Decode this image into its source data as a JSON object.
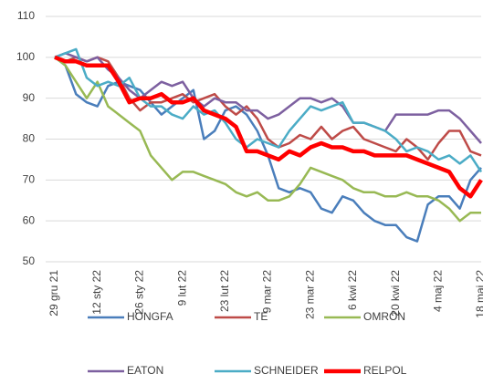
{
  "chart_data": {
    "type": "line",
    "categories": [
      "29 gru 21",
      null,
      null,
      null,
      "12 sty 22",
      null,
      null,
      null,
      "26 sty 22",
      null,
      null,
      null,
      "9 lut 22",
      null,
      null,
      null,
      "23 lut 22",
      null,
      null,
      null,
      "9 mar 22",
      null,
      null,
      null,
      "23 mar 22",
      null,
      null,
      null,
      "6 kwi 22",
      null,
      null,
      null,
      "20 kwi 22",
      null,
      null,
      null,
      "4 maj 22",
      null,
      null,
      null,
      "18 maj 22"
    ],
    "ylim": [
      50,
      110
    ],
    "yticks": [
      50,
      60,
      70,
      80,
      90,
      100,
      110
    ],
    "grid": true,
    "legend": "bottom",
    "series": [
      {
        "name": "HONGFA",
        "color": "#4a7ebb",
        "values": [
          100,
          98,
          91,
          89,
          88,
          93,
          94,
          93,
          92,
          89,
          86,
          88,
          90,
          92,
          80,
          82,
          87,
          88,
          86,
          82,
          76,
          68,
          67,
          68,
          67,
          63,
          62,
          66,
          65,
          62,
          60,
          59,
          59,
          56,
          55,
          64,
          66,
          66,
          63,
          70,
          73
        ]
      },
      {
        "name": "TE",
        "color": "#be4b48",
        "values": [
          100,
          99,
          100,
          99,
          100,
          99,
          95,
          90,
          87,
          89,
          89,
          90,
          91,
          89,
          90,
          91,
          88,
          86,
          88,
          85,
          80,
          78,
          79,
          81,
          80,
          83,
          80,
          82,
          83,
          80,
          79,
          78,
          77,
          80,
          78,
          75,
          79,
          82,
          82,
          77,
          76
        ]
      },
      {
        "name": "OMRON",
        "color": "#98b954",
        "values": [
          100,
          98,
          94,
          90,
          94,
          88,
          86,
          84,
          82,
          76,
          73,
          70,
          72,
          72,
          71,
          70,
          69,
          67,
          66,
          67,
          65,
          65,
          66,
          69,
          73,
          72,
          71,
          70,
          68,
          67,
          67,
          66,
          66,
          67,
          66,
          66,
          65,
          63,
          60,
          62,
          62
        ]
      },
      {
        "name": "EATON",
        "color": "#7d60a0",
        "values": [
          100,
          101,
          100,
          99,
          100,
          97,
          95,
          92,
          90,
          92,
          94,
          93,
          94,
          90,
          88,
          90,
          89,
          89,
          87,
          87,
          85,
          86,
          88,
          90,
          90,
          89,
          90,
          88,
          84,
          84,
          83,
          82,
          86,
          86,
          86,
          86,
          87,
          87,
          85,
          82,
          79
        ]
      },
      {
        "name": "SCHNEIDER",
        "color": "#4bacc6",
        "values": [
          100,
          101,
          102,
          95,
          93,
          94,
          93,
          95,
          90,
          88,
          88,
          86,
          85,
          88,
          86,
          87,
          84,
          80,
          78,
          80,
          79,
          78,
          82,
          85,
          88,
          87,
          88,
          89,
          84,
          84,
          83,
          82,
          80,
          77,
          78,
          77,
          75,
          76,
          74,
          76,
          72
        ]
      },
      {
        "name": "RELPOL",
        "color": "#ff0000",
        "values": [
          100,
          99,
          99,
          98,
          98,
          98,
          94,
          89,
          90,
          90,
          91,
          89,
          89,
          90,
          87,
          86,
          85,
          83,
          77,
          77,
          76,
          75,
          77,
          76,
          78,
          79,
          78,
          78,
          77,
          77,
          76,
          76,
          76,
          76,
          75,
          74,
          73,
          72,
          68,
          66,
          70
        ]
      }
    ]
  }
}
